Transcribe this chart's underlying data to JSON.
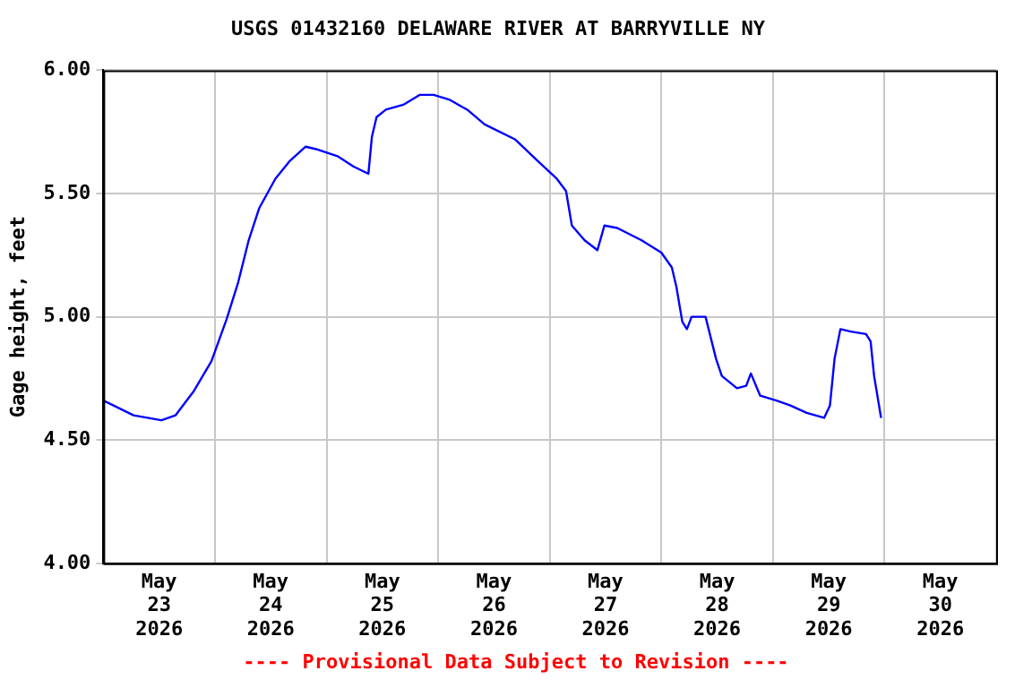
{
  "chart_data": {
    "type": "line",
    "title": "USGS 01432160 DELAWARE RIVER AT BARRYVILLE NY",
    "ylabel": "Gage height, feet",
    "annotations": [
      "---- Provisional Data Subject to Revision ----"
    ],
    "grid": true,
    "legend": false,
    "marker": "none",
    "line_style": "solid",
    "xlim": [
      "2026-05-23T00:00",
      "2026-05-31T00:00"
    ],
    "xticks": [
      {
        "value": "2026-05-23T00:00",
        "label": null
      },
      {
        "value": "2026-05-23T12:00",
        "label": "May\n23\n2026"
      },
      {
        "value": "2026-05-24T00:00",
        "label": null
      },
      {
        "value": "2026-05-24T12:00",
        "label": "May\n24\n2026"
      },
      {
        "value": "2026-05-25T00:00",
        "label": null
      },
      {
        "value": "2026-05-25T12:00",
        "label": "May\n25\n2026"
      },
      {
        "value": "2026-05-26T00:00",
        "label": null
      },
      {
        "value": "2026-05-26T12:00",
        "label": "May\n26\n2026"
      },
      {
        "value": "2026-05-27T00:00",
        "label": null
      },
      {
        "value": "2026-05-27T12:00",
        "label": "May\n27\n2026"
      },
      {
        "value": "2026-05-28T00:00",
        "label": null
      },
      {
        "value": "2026-05-28T12:00",
        "label": "May\n28\n2026"
      },
      {
        "value": "2026-05-29T00:00",
        "label": null
      },
      {
        "value": "2026-05-29T12:00",
        "label": "May\n29\n2026"
      },
      {
        "value": "2026-05-30T00:00",
        "label": null
      },
      {
        "value": "2026-05-30T12:00",
        "label": "May\n30\n2026"
      },
      {
        "value": "2026-05-31T00:00",
        "label": null
      }
    ],
    "ylim": [
      4,
      6
    ],
    "yticks": [
      {
        "value": 4,
        "label": "4.00"
      },
      {
        "value": 4.5,
        "label": "4.50"
      },
      {
        "value": 5,
        "label": "5.00"
      },
      {
        "value": 5.5,
        "label": "5.50"
      },
      {
        "value": 6,
        "label": "6.00"
      }
    ],
    "series": [
      {
        "color": "#0000ff",
        "x": [
          "2026-05-23T00:00",
          "2026-05-23T06:30",
          "2026-05-23T12:30",
          "2026-05-23T15:30",
          "2026-05-23T19:30",
          "2026-05-23T23:15",
          "2026-05-24T02:30",
          "2026-05-24T05:00",
          "2026-05-24T07:15",
          "2026-05-24T09:30",
          "2026-05-24T13:00",
          "2026-05-24T16:00",
          "2026-05-24T19:30",
          "2026-05-24T21:45",
          "2026-05-25T02:30",
          "2026-05-25T05:45",
          "2026-05-25T09:00",
          "2026-05-25T09:45",
          "2026-05-25T10:45",
          "2026-05-25T12:45",
          "2026-05-25T16:30",
          "2026-05-25T20:00",
          "2026-05-25T23:00",
          "2026-05-26T02:30",
          "2026-05-26T06:15",
          "2026-05-26T10:00",
          "2026-05-26T16:30",
          "2026-05-26T21:30",
          "2026-05-27T01:30",
          "2026-05-27T03:30",
          "2026-05-27T04:45",
          "2026-05-27T07:30",
          "2026-05-27T10:15",
          "2026-05-27T11:45",
          "2026-05-27T14:30",
          "2026-05-27T19:45",
          "2026-05-28T00:00",
          "2026-05-28T02:15",
          "2026-05-28T03:15",
          "2026-05-28T04:30",
          "2026-05-28T05:30",
          "2026-05-28T06:30",
          "2026-05-28T09:30",
          "2026-05-28T11:45",
          "2026-05-28T13:00",
          "2026-05-28T16:15",
          "2026-05-28T18:15",
          "2026-05-28T19:15",
          "2026-05-28T21:15",
          "2026-05-29T00:45",
          "2026-05-29T03:45",
          "2026-05-29T07:15",
          "2026-05-29T11:00",
          "2026-05-29T12:15",
          "2026-05-29T13:15",
          "2026-05-29T14:30",
          "2026-05-29T16:45",
          "2026-05-29T20:00",
          "2026-05-29T21:00",
          "2026-05-29T21:45",
          "2026-05-29T23:15"
        ],
        "values": [
          4.66,
          4.6,
          4.58,
          4.6,
          4.7,
          4.82,
          4.99,
          5.14,
          5.31,
          5.44,
          5.56,
          5.63,
          5.69,
          5.68,
          5.65,
          5.61,
          5.58,
          5.73,
          5.81,
          5.84,
          5.86,
          5.9,
          5.9,
          5.88,
          5.84,
          5.78,
          5.72,
          5.63,
          5.56,
          5.51,
          5.37,
          5.31,
          5.27,
          5.37,
          5.36,
          5.31,
          5.26,
          5.2,
          5.12,
          4.98,
          4.95,
          5.0,
          5.0,
          4.83,
          4.76,
          4.71,
          4.72,
          4.77,
          4.68,
          4.66,
          4.64,
          4.61,
          4.59,
          4.64,
          4.83,
          4.95,
          4.94,
          4.93,
          4.9,
          4.76,
          4.59
        ]
      }
    ]
  }
}
